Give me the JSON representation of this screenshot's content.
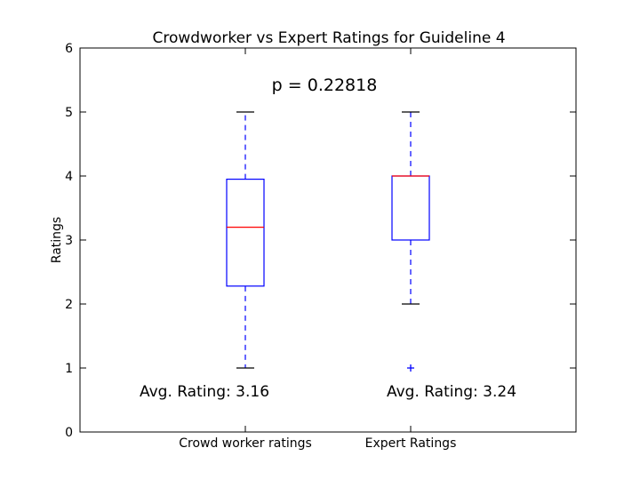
{
  "chart_data": {
    "type": "box",
    "title": "Crowdworker vs Expert Ratings for Guideline 4",
    "xlabel": "",
    "ylabel": "Ratings",
    "ylim": [
      0,
      6
    ],
    "yticks": [
      "0",
      "1",
      "2",
      "3",
      "4",
      "5",
      "6"
    ],
    "categories": [
      "Crowd worker ratings",
      "Expert Ratings"
    ],
    "boxes": [
      {
        "min": 1,
        "q1": 2.28,
        "median": 3.2,
        "q3": 3.95,
        "max": 5,
        "outliers": []
      },
      {
        "min": 2,
        "q1": 3.0,
        "median": 4.0,
        "q3": 4.0,
        "max": 5,
        "outliers": [
          1
        ]
      }
    ],
    "annotations": {
      "p_value": "p = 0.22818",
      "avg_labels": [
        "Avg. Rating: 3.16",
        "Avg. Rating: 3.24"
      ]
    },
    "grid": false,
    "colors": {
      "box": "#0000ff",
      "median": "#ff0000",
      "whisker_cap": "#000000",
      "outlier": "#0000ff"
    }
  }
}
